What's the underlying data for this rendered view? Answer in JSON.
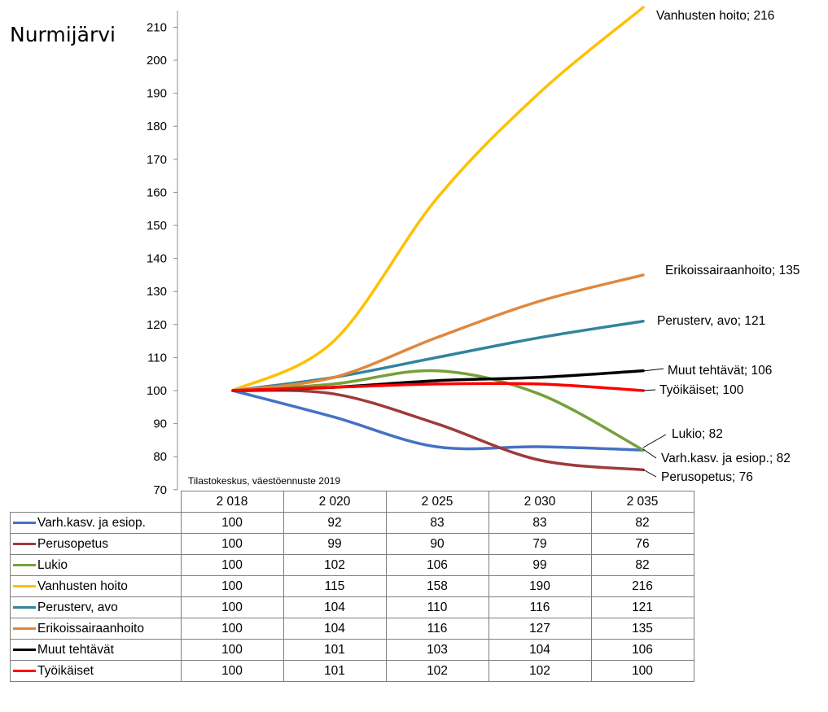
{
  "region_label": "Nurmijärvi",
  "source_note": "Tilastokeskus, väestöennuste 2019",
  "table": {
    "years": [
      "2 018",
      "2 020",
      "2 025",
      "2 030",
      "2 035"
    ]
  },
  "chart_data": {
    "type": "line",
    "x": [
      2018,
      2020,
      2025,
      2030,
      2035
    ],
    "y_range": [
      70,
      215
    ],
    "y_ticks": [
      70,
      80,
      90,
      100,
      110,
      120,
      130,
      140,
      150,
      160,
      170,
      180,
      190,
      200,
      210
    ],
    "grid": false,
    "series": [
      {
        "name": "Varh.kasv. ja esiop.",
        "values": [
          100,
          92,
          83,
          83,
          82
        ],
        "color": "#4472c4",
        "end_label": "Varh.kasv. ja esiop.; 82"
      },
      {
        "name": "Perusopetus",
        "values": [
          100,
          99,
          90,
          79,
          76
        ],
        "color": "#9e3b3b",
        "end_label": "Perusopetus; 76"
      },
      {
        "name": "Lukio",
        "values": [
          100,
          102,
          106,
          99,
          82
        ],
        "color": "#77a03a",
        "end_label": "Lukio; 82"
      },
      {
        "name": "Vanhusten hoito",
        "values": [
          100,
          115,
          158,
          190,
          216
        ],
        "color": "#ffc000",
        "end_label": "Vanhusten hoito; 216"
      },
      {
        "name": "Perusterv, avo",
        "values": [
          100,
          104,
          110,
          116,
          121
        ],
        "color": "#31859c",
        "end_label": "Perusterv, avo; 121"
      },
      {
        "name": "Erikoissairaanhoito",
        "values": [
          100,
          104,
          116,
          127,
          135
        ],
        "color": "#e0873c",
        "end_label": "Erikoissairaanhoito; 135"
      },
      {
        "name": "Muut tehtävät",
        "values": [
          100,
          101,
          103,
          104,
          106
        ],
        "color": "#000000",
        "end_label": "Muut tehtävät; 106"
      },
      {
        "name": "Työikäiset",
        "values": [
          100,
          101,
          102,
          102,
          100
        ],
        "color": "#ff0000",
        "end_label": "Työikäiset; 100"
      }
    ]
  }
}
